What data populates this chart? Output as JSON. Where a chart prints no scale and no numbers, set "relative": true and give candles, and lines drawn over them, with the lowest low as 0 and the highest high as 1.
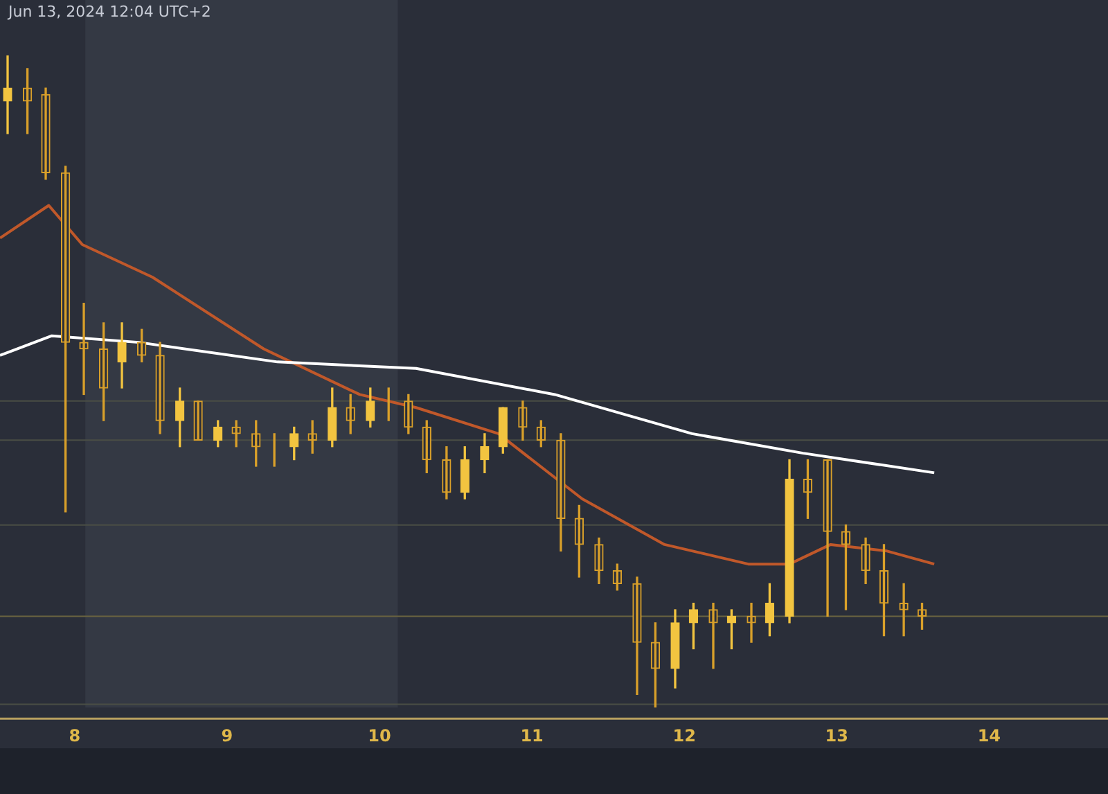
{
  "chart_data": {
    "type": "candlestick",
    "relative": true,
    "annotations": [
      "Jun 13, 2024 12:04 UTC+2"
    ],
    "xlim": [
      7.51,
      14.78
    ],
    "xticks": [
      8,
      9,
      10,
      11,
      12,
      13,
      14
    ],
    "grid": false,
    "legend": false,
    "x": [
      7.56,
      7.69,
      7.81,
      7.94,
      8.06,
      8.19,
      8.31,
      8.44,
      8.56,
      8.69,
      8.81,
      8.94,
      9.06,
      9.19,
      9.31,
      9.44,
      9.56,
      9.69,
      9.81,
      9.94,
      10.06,
      10.19,
      10.31,
      10.44,
      10.56,
      10.69,
      10.81,
      10.94,
      11.06,
      11.19,
      11.31,
      11.44,
      11.56,
      11.69,
      11.81,
      11.94,
      12.06,
      12.19,
      12.31,
      12.44,
      12.56,
      12.69,
      12.81,
      12.94,
      13.06,
      13.19,
      13.31,
      13.44,
      13.56
    ],
    "colors": [
      "#f2c440",
      "#d9a02a",
      "#d9a02a",
      "#d9a02a",
      "#d9a02a",
      "#d9a02a",
      "#f2c440",
      "#d9a02a",
      "#d9a02a",
      "#f2c440",
      "#d9a02a",
      "#f2c440",
      "#d9a02a",
      "#d9a02a",
      "#d9a02a",
      "#f2c440",
      "#d9a02a",
      "#f2c440",
      "#d9a02a",
      "#f2c440",
      "#d9a02a",
      "#d9a02a",
      "#d9a02a",
      "#d9a02a",
      "#f2c440",
      "#f2c440",
      "#f2c440",
      "#d9a02a",
      "#d9a02a",
      "#d9a02a",
      "#d9a02a",
      "#d9a02a",
      "#d9a02a",
      "#d9a02a",
      "#d9a02a",
      "#f2c440",
      "#f2c440",
      "#d9a02a",
      "#f2c440",
      "#d9a02a",
      "#f2c440",
      "#f2c440",
      "#d9a02a",
      "#d9a02a",
      "#d9a02a",
      "#d9a02a",
      "#d9a02a",
      "#d9a02a",
      "#d9a02a"
    ],
    "ohlc": [
      [
        0.93,
        1.0,
        0.88,
        0.95
      ],
      [
        0.95,
        0.98,
        0.88,
        0.93
      ],
      [
        0.94,
        0.95,
        0.81,
        0.82
      ],
      [
        0.82,
        0.83,
        0.3,
        0.56
      ],
      [
        0.56,
        0.62,
        0.48,
        0.55
      ],
      [
        0.55,
        0.59,
        0.44,
        0.49
      ],
      [
        0.53,
        0.59,
        0.49,
        0.56
      ],
      [
        0.56,
        0.58,
        0.53,
        0.54
      ],
      [
        0.54,
        0.56,
        0.42,
        0.44
      ],
      [
        0.44,
        0.49,
        0.4,
        0.47
      ],
      [
        0.47,
        0.47,
        0.41,
        0.41
      ],
      [
        0.41,
        0.44,
        0.4,
        0.43
      ],
      [
        0.43,
        0.44,
        0.4,
        0.42
      ],
      [
        0.42,
        0.44,
        0.37,
        0.4
      ],
      [
        0.4,
        0.42,
        0.37,
        0.4
      ],
      [
        0.4,
        0.43,
        0.38,
        0.42
      ],
      [
        0.42,
        0.44,
        0.39,
        0.41
      ],
      [
        0.41,
        0.49,
        0.4,
        0.46
      ],
      [
        0.46,
        0.48,
        0.42,
        0.44
      ],
      [
        0.44,
        0.49,
        0.43,
        0.47
      ],
      [
        0.47,
        0.49,
        0.44,
        0.47
      ],
      [
        0.47,
        0.48,
        0.42,
        0.43
      ],
      [
        0.43,
        0.44,
        0.36,
        0.38
      ],
      [
        0.38,
        0.4,
        0.32,
        0.33
      ],
      [
        0.33,
        0.4,
        0.32,
        0.38
      ],
      [
        0.38,
        0.42,
        0.36,
        0.4
      ],
      [
        0.4,
        0.46,
        0.39,
        0.46
      ],
      [
        0.46,
        0.47,
        0.41,
        0.43
      ],
      [
        0.43,
        0.44,
        0.4,
        0.41
      ],
      [
        0.41,
        0.42,
        0.24,
        0.29
      ],
      [
        0.29,
        0.31,
        0.2,
        0.25
      ],
      [
        0.25,
        0.26,
        0.19,
        0.21
      ],
      [
        0.21,
        0.22,
        0.18,
        0.19
      ],
      [
        0.19,
        0.2,
        0.02,
        0.1
      ],
      [
        0.1,
        0.13,
        0.0,
        0.06
      ],
      [
        0.06,
        0.15,
        0.03,
        0.13
      ],
      [
        0.13,
        0.16,
        0.09,
        0.15
      ],
      [
        0.15,
        0.16,
        0.06,
        0.13
      ],
      [
        0.13,
        0.15,
        0.09,
        0.14
      ],
      [
        0.14,
        0.16,
        0.1,
        0.13
      ],
      [
        0.13,
        0.19,
        0.11,
        0.16
      ],
      [
        0.14,
        0.38,
        0.13,
        0.35
      ],
      [
        0.35,
        0.38,
        0.29,
        0.33
      ],
      [
        0.38,
        0.38,
        0.14,
        0.27
      ],
      [
        0.27,
        0.28,
        0.15,
        0.25
      ],
      [
        0.25,
        0.26,
        0.19,
        0.21
      ],
      [
        0.21,
        0.25,
        0.11,
        0.16
      ],
      [
        0.16,
        0.19,
        0.11,
        0.15
      ],
      [
        0.15,
        0.16,
        0.12,
        0.14
      ]
    ],
    "series": [
      {
        "type": "line",
        "color": "#ffffff",
        "x": [
          7.51,
          7.85,
          8.42,
          9.33,
          10.24,
          11.15,
          12.05,
          12.78,
          13.64
        ],
        "values": [
          0.54,
          0.57,
          0.56,
          0.53,
          0.52,
          0.48,
          0.42,
          0.39,
          0.36
        ]
      },
      {
        "type": "line",
        "color": "#c0582a",
        "x": [
          7.51,
          7.83,
          8.05,
          8.51,
          9.24,
          9.87,
          10.24,
          10.78,
          11.33,
          11.87,
          12.42,
          12.69,
          12.96,
          13.33,
          13.64
        ],
        "values": [
          0.72,
          0.77,
          0.71,
          0.66,
          0.55,
          0.48,
          0.46,
          0.42,
          0.32,
          0.25,
          0.22,
          0.22,
          0.25,
          0.24,
          0.22
        ]
      }
    ],
    "ref_lines": [
      {
        "axis": "y",
        "value": 0.47,
        "color": "#4a4e45"
      },
      {
        "axis": "y",
        "value": 0.41,
        "color": "#4a4e45"
      },
      {
        "axis": "y",
        "value": 0.28,
        "color": "#4a4e45"
      },
      {
        "axis": "y",
        "value": 0.14,
        "color": "#6b6440"
      },
      {
        "axis": "y",
        "value": 0.005,
        "color": "#4a4e45"
      }
    ],
    "bands": [
      {
        "axis": "x",
        "from": 8.07,
        "to": 10.12,
        "color": "#343944"
      }
    ]
  }
}
